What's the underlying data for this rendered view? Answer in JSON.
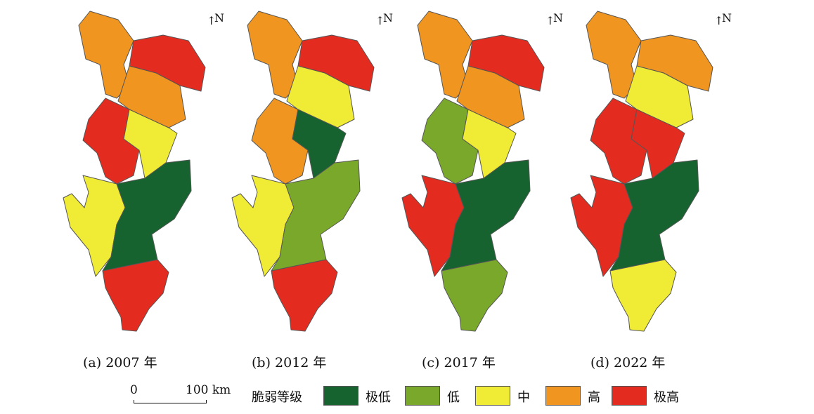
{
  "north_label": "N",
  "north_arrow": "↑",
  "panels": [
    {
      "caption": "(a) 2007 年",
      "levels": [
        "high",
        "very_high",
        "high",
        "very_high",
        "medium",
        "medium",
        "very_low",
        "very_high"
      ]
    },
    {
      "caption": "(b) 2012 年",
      "levels": [
        "high",
        "very_high",
        "medium",
        "high",
        "very_low",
        "medium",
        "low",
        "very_high"
      ]
    },
    {
      "caption": "(c) 2017 年",
      "levels": [
        "high",
        "very_high",
        "high",
        "low",
        "medium",
        "very_high",
        "very_low",
        "low"
      ]
    },
    {
      "caption": "(d) 2022 年",
      "levels": [
        "high",
        "high",
        "medium",
        "very_high",
        "very_high",
        "very_high",
        "very_low",
        "medium"
      ]
    }
  ],
  "scale": {
    "start": "0",
    "end": "100",
    "unit": "km"
  },
  "legend": {
    "title": "脆弱等级",
    "items": [
      {
        "key": "very_low",
        "label": "极低",
        "color": "#17632f"
      },
      {
        "key": "low",
        "label": "低",
        "color": "#7aa82b"
      },
      {
        "key": "medium",
        "label": "中",
        "color": "#f0eb34"
      },
      {
        "key": "high",
        "label": "高",
        "color": "#f0951f"
      },
      {
        "key": "very_high",
        "label": "极高",
        "color": "#e42b20"
      }
    ]
  }
}
